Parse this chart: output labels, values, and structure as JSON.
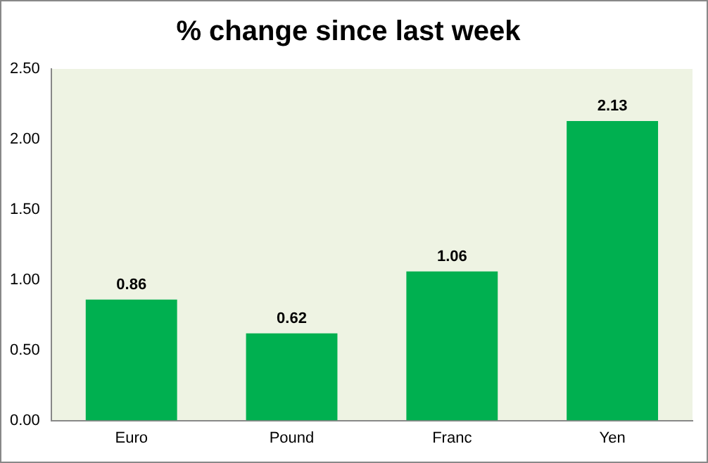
{
  "chart_data": {
    "type": "bar",
    "title": "% change since last week",
    "categories": [
      "Euro",
      "Pound",
      "Franc",
      "Yen"
    ],
    "values": [
      0.86,
      0.62,
      1.06,
      2.13
    ],
    "color": "#00b050",
    "ylim": [
      0,
      2.5
    ],
    "yticks": [
      {
        "value": 0,
        "label": "0.00"
      },
      {
        "value": 0.5,
        "label": "0.50"
      },
      {
        "value": 1,
        "label": "1.00"
      },
      {
        "value": 1.5,
        "label": "1.50"
      },
      {
        "value": 2,
        "label": "2.00"
      },
      {
        "value": 2.5,
        "label": "2.50"
      }
    ],
    "data_labels": true,
    "grid": false,
    "legend": false
  }
}
